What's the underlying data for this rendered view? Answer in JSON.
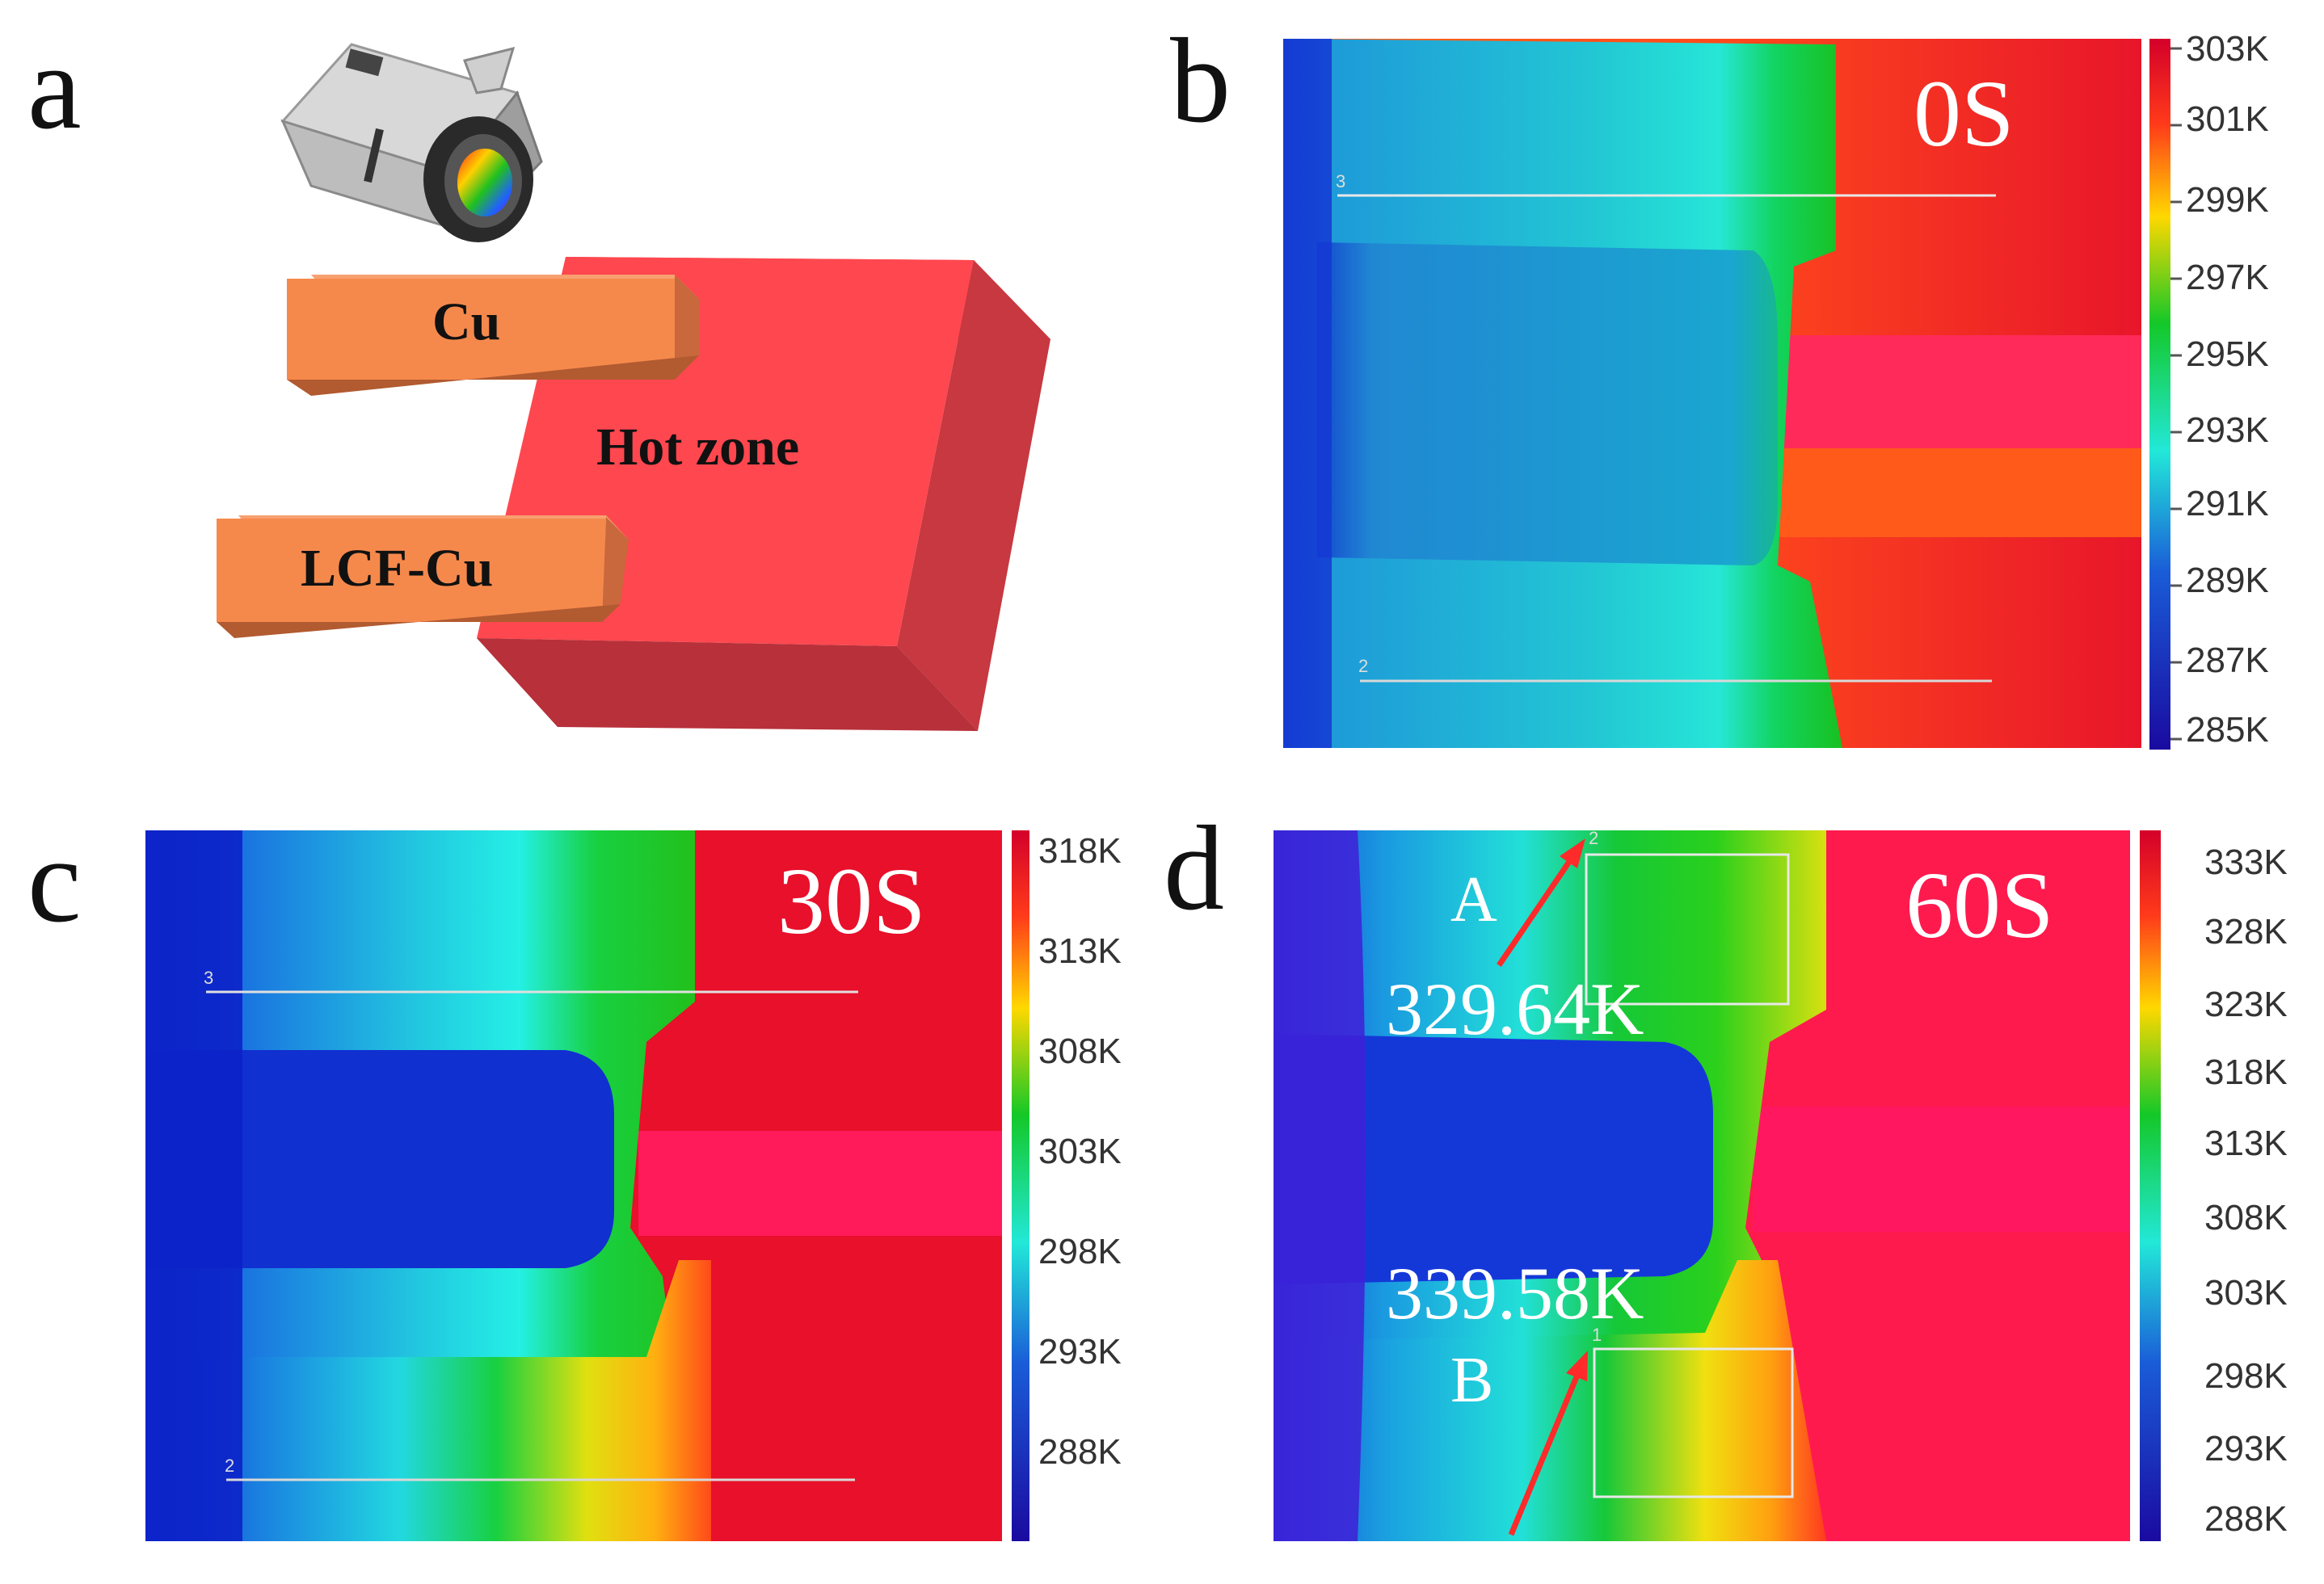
{
  "panels": {
    "a": {
      "letter": "a",
      "cu_label": "Cu",
      "lcf_label": "LCF-Cu",
      "hot_zone_label": "Hot zone"
    },
    "b": {
      "letter": "b",
      "time": "0S",
      "scale": [
        "303K",
        "301K",
        "299K",
        "297K",
        "295K",
        "293K",
        "291K",
        "289K",
        "287K",
        "285K"
      ],
      "line_labels": [
        "3",
        "2"
      ]
    },
    "c": {
      "letter": "c",
      "time": "30S",
      "scale": [
        "318K",
        "313K",
        "308K",
        "303K",
        "298K",
        "293K",
        "288K"
      ],
      "line_labels": [
        "3",
        "2"
      ]
    },
    "d": {
      "letter": "d",
      "time": "60S",
      "scale": [
        "333K",
        "328K",
        "323K",
        "318K",
        "313K",
        "308K",
        "303K",
        "298K",
        "293K",
        "288K"
      ],
      "point_a": "A",
      "point_b": "B",
      "temp_a": "329.64K",
      "temp_b": "339.58K",
      "line_labels": [
        "2",
        "1"
      ]
    }
  },
  "colors": {
    "hot": "#ff1f4f",
    "block_top": "#ff474f",
    "block_side": "#c8323c",
    "bar": "#f5894c",
    "arrow": "#ff2a2a"
  }
}
